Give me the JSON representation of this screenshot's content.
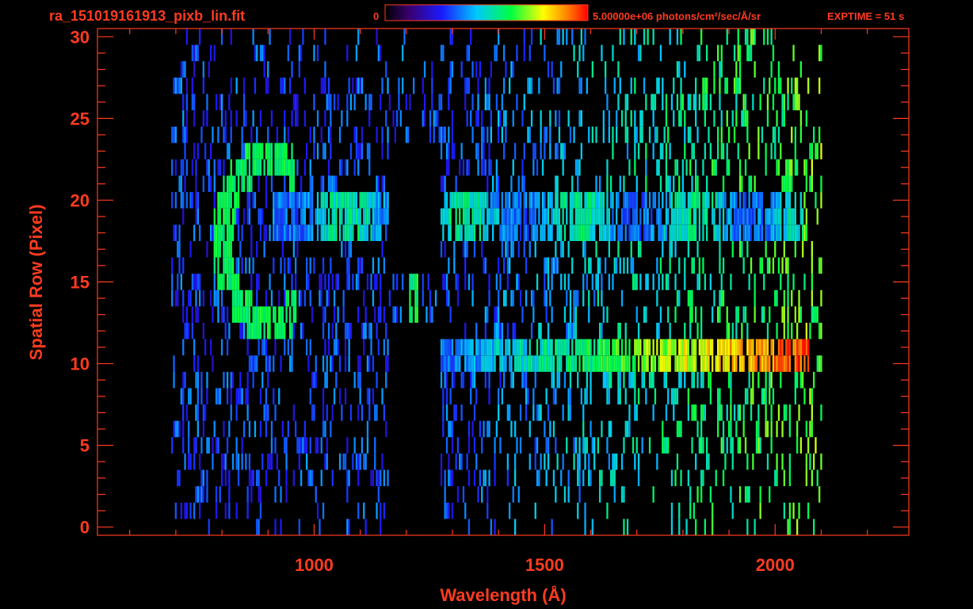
{
  "header": {
    "filename": "ra_151019161913_pixb_lin.fit",
    "colorbar_min_label": "0",
    "colorbar_max_label": "5.00000e+06 photons/cm²/sec/Å/sr",
    "exptime_label": "EXPTIME = 51 s"
  },
  "colors": {
    "axis": "#ff3b1f",
    "background": "#000000",
    "colormap": [
      "#000000",
      "#3a0070",
      "#1a1aff",
      "#00c8ff",
      "#00ff40",
      "#ffff00",
      "#ff8000",
      "#ff0000"
    ]
  },
  "chart_data": {
    "type": "heatmap",
    "xlabel": "Wavelength (Å)",
    "ylabel": "Spatial Row (Pixel)",
    "xlim": [
      530,
      2290
    ],
    "ylim": [
      -0.5,
      30.5
    ],
    "x_ticks": [
      1000,
      1500,
      2000
    ],
    "x_tick_labels": [
      "1000",
      "1500",
      "2000"
    ],
    "y_ticks": [
      0,
      5,
      10,
      15,
      20,
      25,
      30
    ],
    "y_tick_labels": [
      "0",
      "5",
      "10",
      "15",
      "20",
      "25",
      "30"
    ],
    "colorbar": {
      "min": 0,
      "max": 5000000,
      "units": "photons/cm²/sec/Å/sr"
    },
    "data_range": {
      "wavelength_min": 690,
      "wavelength_max": 2100,
      "rows_min": 0,
      "rows_max": 30
    },
    "blocked_region": {
      "wavelength": [
        1160,
        1270
      ],
      "rows_a": [
        16,
        23
      ],
      "rows_b": [
        0,
        12
      ]
    },
    "features": [
      {
        "name": "upper-band",
        "rows": [
          18,
          20
        ],
        "wavelength": [
          910,
          2060
        ],
        "relative_intensity": 0.5
      },
      {
        "name": "lower-band",
        "rows": [
          10,
          11
        ],
        "wavelength": [
          1270,
          2070
        ],
        "relative_intensity": 0.8
      },
      {
        "name": "lyman-alpha-line",
        "rows": [
          12,
          15
        ],
        "wavelength": [
          1205,
          1222
        ],
        "relative_intensity": 0.6
      },
      {
        "name": "curved-arc",
        "rows": [
          13,
          22
        ],
        "wavelength": [
          790,
          970
        ],
        "relative_intensity": 0.55
      }
    ]
  }
}
